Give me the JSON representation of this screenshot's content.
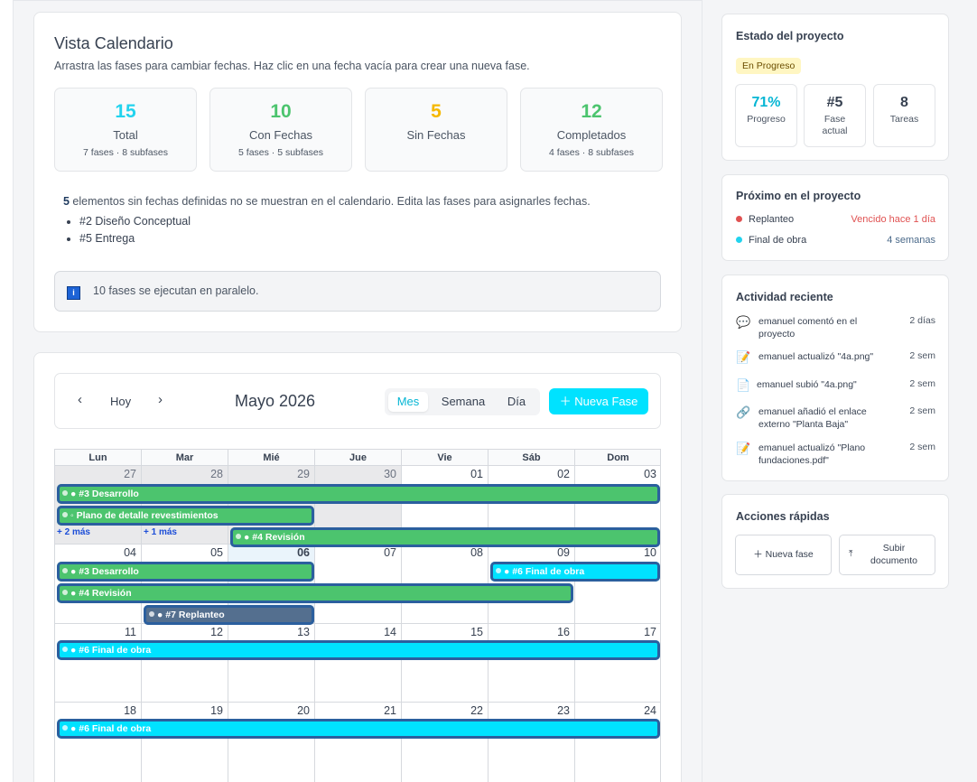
{
  "vista": {
    "title": "Vista Calendario",
    "subtitle": "Arrastra las fases para cambiar fechas. Haz clic en una fecha vacía para crear una nueva fase.",
    "stats": [
      {
        "value": "15",
        "label": "Total",
        "detail": "7 fases · 8 subfases",
        "color": "#22d3ee"
      },
      {
        "value": "10",
        "label": "Con Fechas",
        "detail": "5 fases · 5 subfases",
        "color": "#4cc46e"
      },
      {
        "value": "5",
        "label": "Sin Fechas",
        "detail": "",
        "color": "#f5b800"
      },
      {
        "value": "12",
        "label": "Completados",
        "detail": "4 fases · 8 subfases",
        "color": "#4cc46e"
      }
    ],
    "no_dates_count": "5",
    "no_dates_text": " elementos sin fechas definidas no se muestran en el calendario. Edita las fases para asignarles fechas.",
    "no_dates_items": [
      "#2 Diseño Conceptual",
      "#5 Entrega"
    ],
    "info_icon": "i",
    "info_text": "10 fases se ejecutan en paralelo."
  },
  "calendar": {
    "prev_icon": "‹",
    "next_icon": "›",
    "today_label": "Hoy",
    "month_title": "Mayo 2026",
    "views": [
      "Mes",
      "Semana",
      "Día"
    ],
    "active_view": "Mes",
    "new_phase_label": "＋ Nueva Fase",
    "weekdays": [
      "Lun",
      "Mar",
      "Mié",
      "Jue",
      "Vie",
      "Sáb",
      "Dom"
    ],
    "weeks": [
      [
        "27",
        "28",
        "29",
        "30",
        "01",
        "02",
        "03"
      ],
      [
        "04",
        "05",
        "06",
        "07",
        "08",
        "09",
        "10"
      ],
      [
        "11",
        "12",
        "13",
        "14",
        "15",
        "16",
        "17"
      ],
      [
        "18",
        "19",
        "20",
        "21",
        "22",
        "23",
        "24"
      ]
    ],
    "today": "06",
    "more_labels": [
      "+ 2 más",
      "+ 1 más"
    ],
    "events": [
      {
        "label": "● #3 Desarrollo",
        "color": "green"
      },
      {
        "label": "◦ Plano de detalle revestimientos",
        "color": "green"
      },
      {
        "label": "● #4 Revisión",
        "color": "green"
      },
      {
        "label": "● #3 Desarrollo",
        "color": "green"
      },
      {
        "label": "● #6 Final de obra",
        "color": "cyan"
      },
      {
        "label": "● #4 Revisión",
        "color": "green"
      },
      {
        "label": "● #7 Replanteo",
        "color": "slate"
      },
      {
        "label": "● #6 Final de obra",
        "color": "cyan"
      },
      {
        "label": "● #6 Final de obra",
        "color": "cyan"
      }
    ]
  },
  "sidebar": {
    "status": {
      "title": "Estado del proyecto",
      "badge": "En Progreso",
      "metrics": [
        {
          "value": "71%",
          "label": "Progreso",
          "color": "#06b6d4"
        },
        {
          "value": "#5",
          "label": "Fase actual",
          "color": "#374151"
        },
        {
          "value": "8",
          "label": "Tareas",
          "color": "#374151"
        }
      ]
    },
    "upcoming": {
      "title": "Próximo en el proyecto",
      "items": [
        {
          "name": "Replanteo",
          "when": "Vencido hace 1 día",
          "dot": "#e05252",
          "when_color": "#e05252"
        },
        {
          "name": "Final de obra",
          "when": "4 semanas",
          "dot": "#22d3ee",
          "when_color": "#4b6a8a"
        }
      ]
    },
    "activity": {
      "title": "Actividad reciente",
      "items": [
        {
          "icon": "comment-icon",
          "glyph": "💬",
          "text": "emanuel comentó en el proyecto",
          "time": "2 días"
        },
        {
          "icon": "edit-doc-icon",
          "glyph": "📝",
          "text": "emanuel actualizó \"4a.png\"",
          "time": "2 sem"
        },
        {
          "icon": "document-icon",
          "glyph": "📄",
          "text": "emanuel subió \"4a.png\"",
          "time": "2 sem"
        },
        {
          "icon": "link-icon",
          "glyph": "🔗",
          "text": "emanuel añadió el enlace externo \"Planta Baja\"",
          "time": "2 sem"
        },
        {
          "icon": "edit-doc-icon",
          "glyph": "📝",
          "text": "emanuel actualizó \"Plano fundaciones.pdf\"",
          "time": "2 sem"
        }
      ]
    },
    "quick": {
      "title": "Acciones rápidas",
      "new_phase": "＋ Nueva fase",
      "upload": "Subir documento",
      "upload_icon": "⤒"
    }
  }
}
